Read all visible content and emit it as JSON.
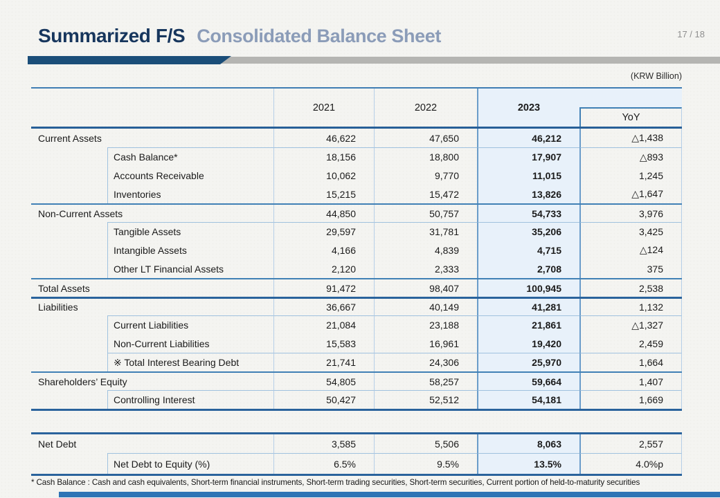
{
  "slide": {
    "title_primary": "Summarized F/S",
    "title_secondary": "Consolidated Balance Sheet",
    "page_indicator": "17 / 18",
    "unit_note": "(KRW Billion)",
    "footnote": "* Cash Balance : Cash and cash equivalents, Short-term financial instruments, Short-term trading securities, Short-term securities, Current portion of held-to-maturity securities"
  },
  "colors": {
    "title_navy": "#17365d",
    "subtitle_blue_gray": "#8b9cb8",
    "accent_bar_blue": "#1b4e79",
    "accent_bar_gray": "#b5b5b2",
    "table_line_strong": "#2a639c",
    "table_line_section": "#4080b5",
    "table_line_thin": "#b5cee7",
    "highlight_2023_bg": "#e8f1fa",
    "footer_bar_blue": "#2e74b5",
    "background": "#f4f4f1"
  },
  "balance_sheet": {
    "columns": [
      "2021",
      "2022",
      "2023",
      "YoY"
    ],
    "rows": [
      {
        "label": "Current Assets",
        "indent": false,
        "sep": "none",
        "values": [
          "46,622",
          "47,650",
          "46,212",
          "△1,438"
        ]
      },
      {
        "label": "Cash Balance*",
        "indent": true,
        "sep": "sub",
        "values": [
          "18,156",
          "18,800",
          "17,907",
          "△893"
        ]
      },
      {
        "label": "Accounts Receivable",
        "indent": true,
        "sep": "none",
        "values": [
          "10,062",
          "9,770",
          "11,015",
          "1,245"
        ]
      },
      {
        "label": "Inventories",
        "indent": true,
        "sep": "none",
        "values": [
          "15,215",
          "15,472",
          "13,826",
          "△1,647"
        ]
      },
      {
        "label": "Non-Current Assets",
        "indent": false,
        "sep": "section",
        "values": [
          "44,850",
          "50,757",
          "54,733",
          "3,976"
        ]
      },
      {
        "label": "Tangible Assets",
        "indent": true,
        "sep": "sub",
        "values": [
          "29,597",
          "31,781",
          "35,206",
          "3,425"
        ]
      },
      {
        "label": "Intangible Assets",
        "indent": true,
        "sep": "none",
        "values": [
          "4,166",
          "4,839",
          "4,715",
          "△124"
        ]
      },
      {
        "label": "Other LT Financial Assets",
        "indent": true,
        "sep": "none",
        "values": [
          "2,120",
          "2,333",
          "2,708",
          "375"
        ]
      },
      {
        "label": "Total Assets",
        "indent": false,
        "sep": "section",
        "values": [
          "91,472",
          "98,407",
          "100,945",
          "2,538"
        ]
      },
      {
        "label": "Liabilities",
        "indent": false,
        "sep": "strong",
        "values": [
          "36,667",
          "40,149",
          "41,281",
          "1,132"
        ]
      },
      {
        "label": "Current Liabilities",
        "indent": true,
        "sep": "sub",
        "values": [
          "21,084",
          "23,188",
          "21,861",
          "△1,327"
        ]
      },
      {
        "label": "Non-Current Liabilities",
        "indent": true,
        "sep": "none",
        "values": [
          "15,583",
          "16,961",
          "19,420",
          "2,459"
        ]
      },
      {
        "label": "※ Total Interest Bearing Debt",
        "indent": true,
        "sep": "sub",
        "values": [
          "21,741",
          "24,306",
          "25,970",
          "1,664"
        ]
      },
      {
        "label": "Shareholders’ Equity",
        "indent": false,
        "sep": "section",
        "values": [
          "54,805",
          "58,257",
          "59,664",
          "1,407"
        ]
      },
      {
        "label": "Controlling Interest",
        "indent": true,
        "sep": "sub",
        "values": [
          "50,427",
          "52,512",
          "54,181",
          "1,669"
        ]
      }
    ]
  },
  "net_debt": {
    "rows": [
      {
        "label": "Net Debt",
        "indent": false,
        "sep": "none",
        "values": [
          "3,585",
          "5,506",
          "8,063",
          "2,557"
        ]
      },
      {
        "label": "Net Debt to Equity (%)",
        "indent": true,
        "sep": "sub",
        "values": [
          "6.5%",
          "9.5%",
          "13.5%",
          "4.0%p"
        ]
      }
    ]
  }
}
